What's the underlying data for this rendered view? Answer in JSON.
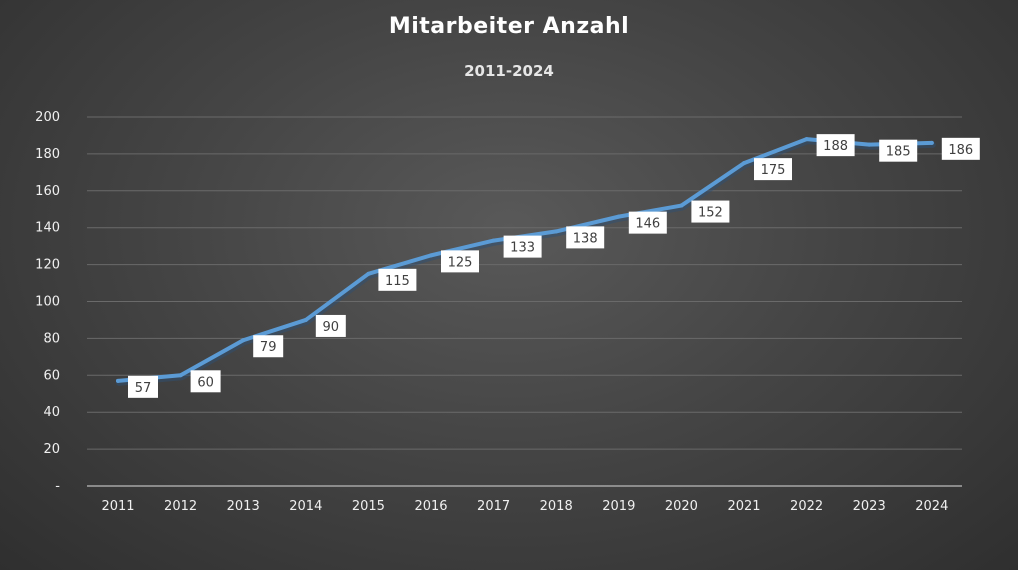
{
  "chart_data": {
    "type": "line",
    "title": "Mitarbeiter Anzahl",
    "subtitle": "2011-2024",
    "xlabel": "",
    "ylabel": "",
    "categories": [
      "2011",
      "2012",
      "2013",
      "2014",
      "2015",
      "2016",
      "2017",
      "2018",
      "2019",
      "2020",
      "2021",
      "2022",
      "2023",
      "2024"
    ],
    "values": [
      57,
      60,
      79,
      90,
      115,
      125,
      133,
      138,
      146,
      152,
      175,
      188,
      185,
      186
    ],
    "ylim": [
      0,
      200
    ],
    "yticks": [
      "-",
      "20",
      "40",
      "60",
      "80",
      "100",
      "120",
      "140",
      "160",
      "180",
      "200"
    ],
    "grid": true,
    "legend": "none",
    "data_labels": true,
    "colors": {
      "line": "#5b9bd5",
      "gridline": "#6a6a6a",
      "axis": "#a6a6a6",
      "label_box": "#ffffff"
    }
  }
}
